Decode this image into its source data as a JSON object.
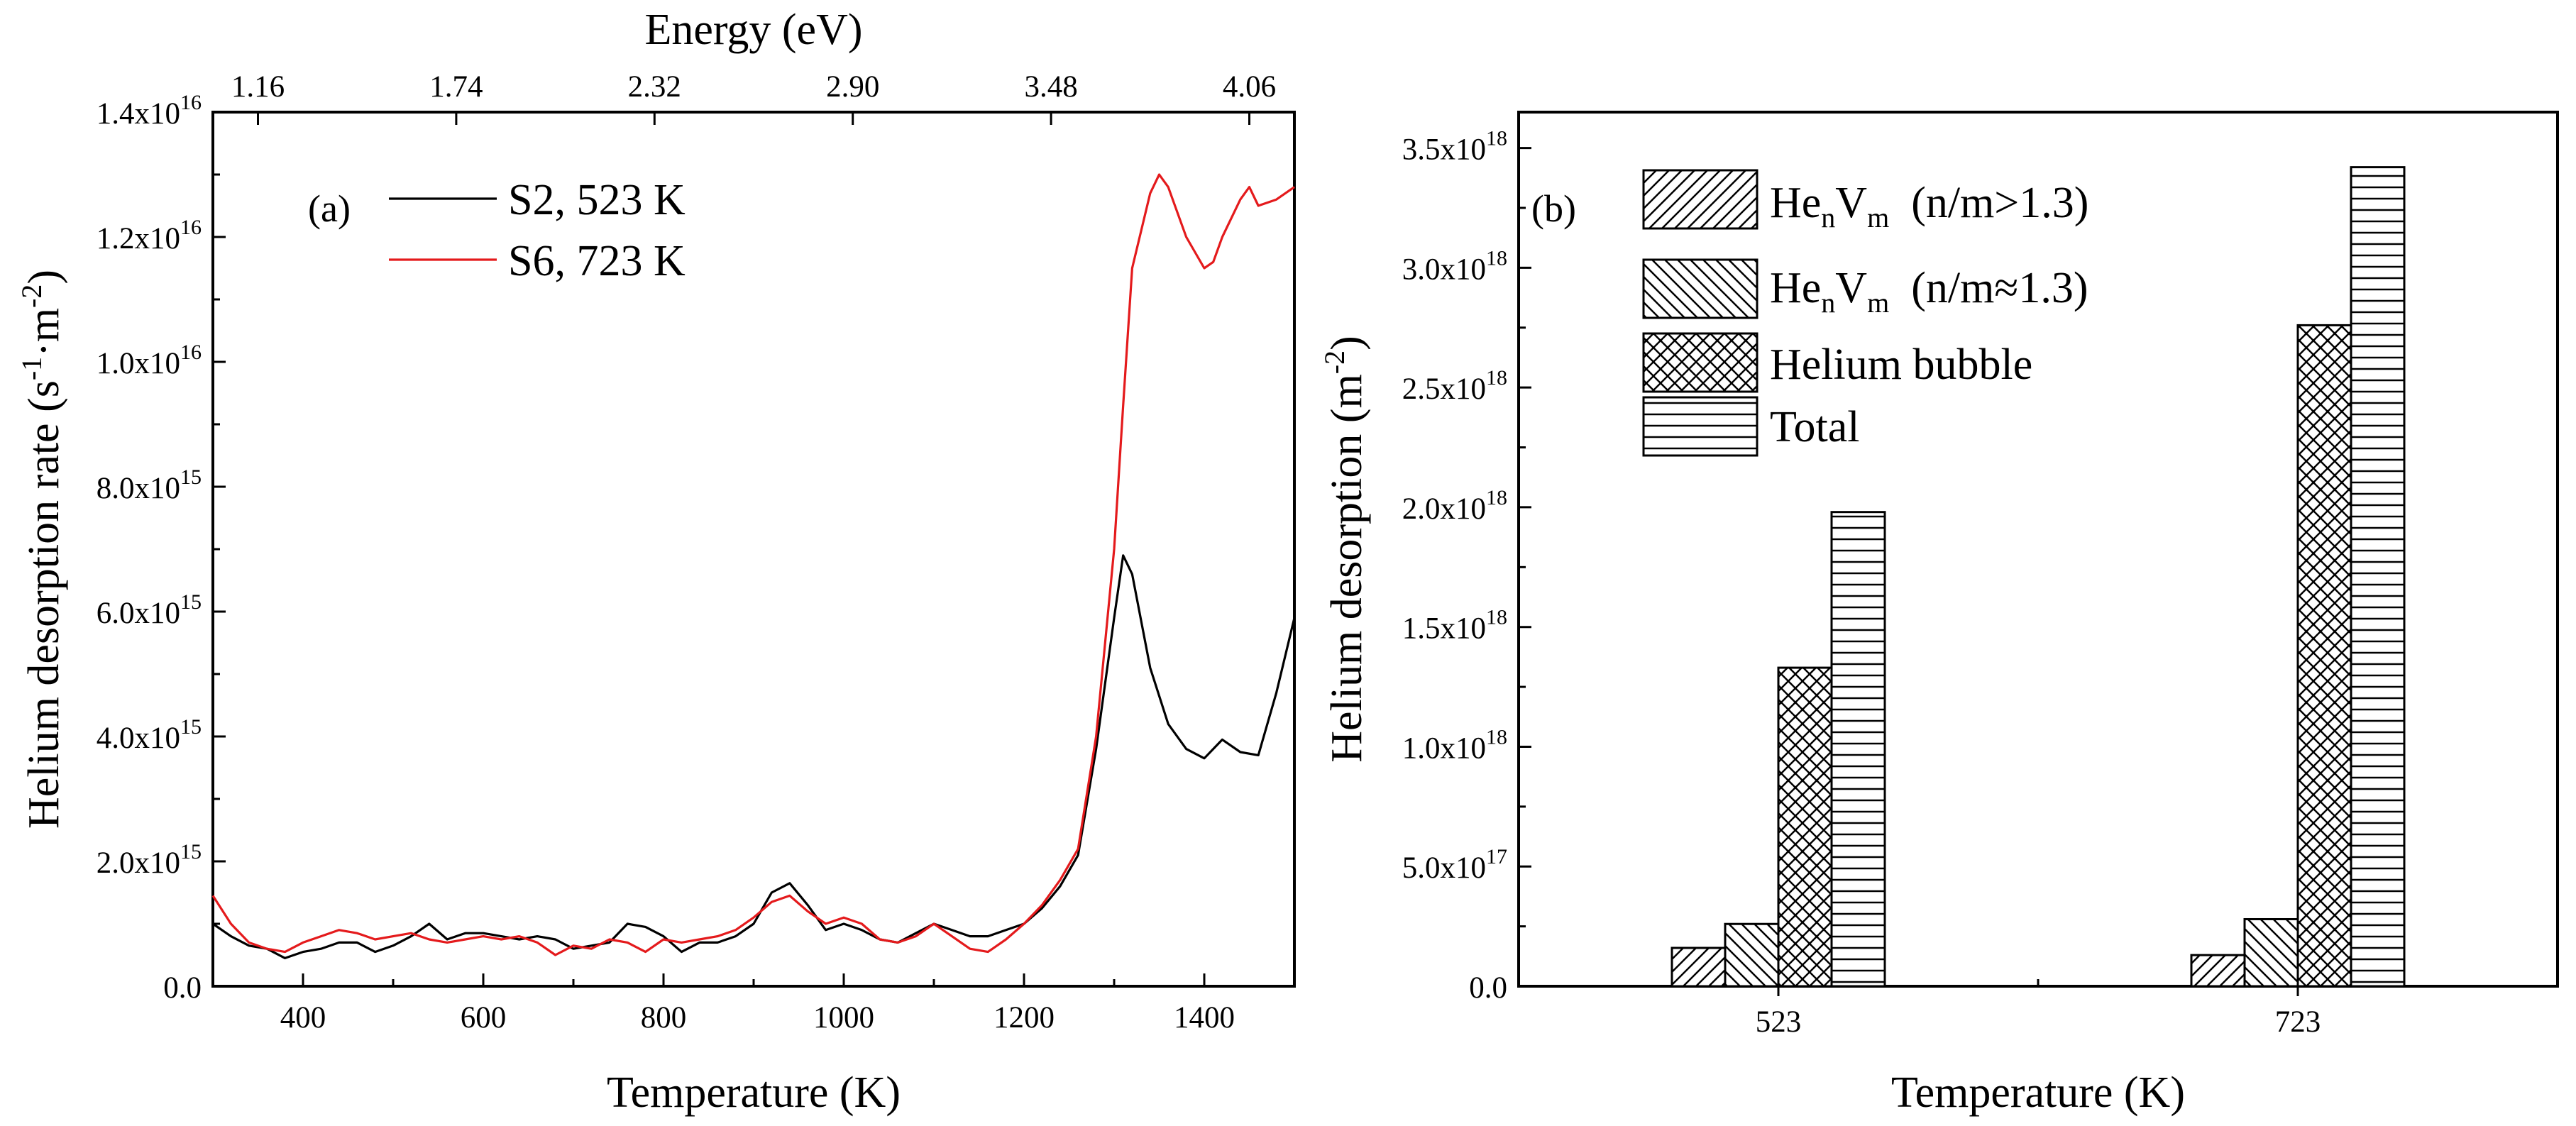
{
  "chart_data": [
    {
      "panel": "(a)",
      "type": "line",
      "xlabel": "Temperature (K)",
      "ylabel": "Helium desorption rate (s",
      "ylabel_unit": {
        "s": "s",
        "s_exp": "-1",
        "sep": "·m",
        "m_exp": "-2",
        "close": ")"
      },
      "top_axis_title": "Energy (eV)",
      "xlim": [
        300,
        1500
      ],
      "ylim": [
        0,
        14
      ],
      "y_multiplier_note": "values in units of 1e15",
      "xticks": [
        400,
        600,
        800,
        1000,
        1200,
        1400
      ],
      "xtick_labels": [
        "400",
        "600",
        "800",
        "1000",
        "1200",
        "1400"
      ],
      "yticks": [
        0,
        2,
        4,
        6,
        8,
        10,
        12,
        14
      ],
      "ytick_labels": [
        {
          "mant": "0.0",
          "exp": ""
        },
        {
          "mant": "2.0x10",
          "exp": "15"
        },
        {
          "mant": "4.0x10",
          "exp": "15"
        },
        {
          "mant": "6.0x10",
          "exp": "15"
        },
        {
          "mant": "8.0x10",
          "exp": "15"
        },
        {
          "mant": "1.0x10",
          "exp": "16"
        },
        {
          "mant": "1.2x10",
          "exp": "16"
        },
        {
          "mant": "1.4x10",
          "exp": "16"
        }
      ],
      "top_ticks_x": [
        350,
        570,
        790,
        1010,
        1230,
        1450
      ],
      "top_tick_labels": [
        "1.16",
        "1.74",
        "2.32",
        "2.90",
        "3.48",
        "4.06"
      ],
      "legend": [
        "S2, 523 K",
        "S6, 723 K"
      ],
      "series": [
        {
          "name": "S2, 523 K",
          "color": "#000000",
          "x": [
            300,
            320,
            340,
            360,
            380,
            400,
            420,
            440,
            460,
            480,
            500,
            520,
            540,
            560,
            580,
            600,
            620,
            640,
            660,
            680,
            700,
            720,
            740,
            760,
            780,
            800,
            820,
            840,
            860,
            880,
            900,
            920,
            940,
            960,
            980,
            1000,
            1020,
            1040,
            1060,
            1080,
            1100,
            1120,
            1140,
            1160,
            1180,
            1200,
            1220,
            1240,
            1260,
            1280,
            1300,
            1310,
            1320,
            1340,
            1360,
            1380,
            1400,
            1420,
            1440,
            1460,
            1480,
            1500
          ],
          "y": [
            1.0,
            0.8,
            0.65,
            0.6,
            0.45,
            0.55,
            0.6,
            0.7,
            0.7,
            0.55,
            0.65,
            0.8,
            1.0,
            0.75,
            0.85,
            0.85,
            0.8,
            0.75,
            0.8,
            0.75,
            0.6,
            0.65,
            0.7,
            1.0,
            0.95,
            0.8,
            0.55,
            0.7,
            0.7,
            0.8,
            1.0,
            1.5,
            1.65,
            1.3,
            0.9,
            1.0,
            0.9,
            0.75,
            0.7,
            0.85,
            1.0,
            0.9,
            0.8,
            0.8,
            0.9,
            1.0,
            1.25,
            1.6,
            2.1,
            3.8,
            5.9,
            6.9,
            6.6,
            5.1,
            4.2,
            3.8,
            3.65,
            3.95,
            3.75,
            3.7,
            4.7,
            5.9
          ]
        },
        {
          "name": "S6, 723 K",
          "color": "#e41a1c",
          "x": [
            300,
            320,
            340,
            360,
            380,
            400,
            420,
            440,
            460,
            480,
            500,
            520,
            540,
            560,
            580,
            600,
            620,
            640,
            660,
            680,
            700,
            720,
            740,
            760,
            780,
            800,
            820,
            840,
            860,
            880,
            900,
            920,
            940,
            960,
            980,
            1000,
            1020,
            1040,
            1060,
            1080,
            1100,
            1120,
            1140,
            1160,
            1180,
            1200,
            1220,
            1240,
            1260,
            1280,
            1300,
            1310,
            1320,
            1340,
            1350,
            1360,
            1380,
            1400,
            1410,
            1420,
            1440,
            1450,
            1460,
            1480,
            1500
          ],
          "y": [
            1.45,
            1.0,
            0.7,
            0.6,
            0.55,
            0.7,
            0.8,
            0.9,
            0.85,
            0.75,
            0.8,
            0.85,
            0.75,
            0.7,
            0.75,
            0.8,
            0.75,
            0.8,
            0.7,
            0.5,
            0.65,
            0.6,
            0.75,
            0.7,
            0.55,
            0.75,
            0.7,
            0.75,
            0.8,
            0.9,
            1.1,
            1.35,
            1.45,
            1.2,
            1.0,
            1.1,
            1.0,
            0.75,
            0.7,
            0.8,
            1.0,
            0.8,
            0.6,
            0.55,
            0.75,
            1.0,
            1.3,
            1.7,
            2.2,
            4.0,
            7.0,
            9.3,
            11.5,
            12.7,
            13.0,
            12.8,
            12.0,
            11.5,
            11.6,
            12.0,
            12.6,
            12.8,
            12.5,
            12.6,
            12.8
          ]
        }
      ]
    },
    {
      "panel": "(b)",
      "type": "bar",
      "xlabel": "Temperature (K)",
      "ylabel": "Helium desorption (m",
      "ylabel_unit": {
        "exp": "-2",
        "close": ")"
      },
      "categories": [
        "523",
        "723"
      ],
      "ylim": [
        0,
        3.65
      ],
      "y_multiplier_note": "values in units of 1e18",
      "yticks": [
        0,
        0.5,
        1.0,
        1.5,
        2.0,
        2.5,
        3.0,
        3.5
      ],
      "ytick_labels": [
        {
          "mant": "0.0",
          "exp": ""
        },
        {
          "mant": "5.0x10",
          "exp": "17"
        },
        {
          "mant": "1.0x10",
          "exp": "18"
        },
        {
          "mant": "1.5x10",
          "exp": "18"
        },
        {
          "mant": "2.0x10",
          "exp": "18"
        },
        {
          "mant": "2.5x10",
          "exp": "18"
        },
        {
          "mant": "3.0x10",
          "exp": "18"
        },
        {
          "mant": "3.5x10",
          "exp": "18"
        }
      ],
      "series": [
        {
          "name": "HenVm (n/m>1.3)",
          "label_parts": {
            "base": "He",
            "sub1": "n",
            "mid": "V",
            "sub2": "m",
            "tail": "  (n/m>1.3)"
          },
          "pattern": "fdiag",
          "values": [
            0.16,
            0.13
          ]
        },
        {
          "name": "HenVm (n/m≈1.3)",
          "label_parts": {
            "base": "He",
            "sub1": "n",
            "mid": "V",
            "sub2": "m",
            "tail": "  (n/m≈1.3)"
          },
          "pattern": "bdiag",
          "values": [
            0.26,
            0.28
          ]
        },
        {
          "name": "Helium bubble",
          "pattern": "cross",
          "values": [
            1.33,
            2.76
          ]
        },
        {
          "name": "Total",
          "pattern": "hlines",
          "values": [
            1.98,
            3.42
          ]
        }
      ]
    }
  ]
}
